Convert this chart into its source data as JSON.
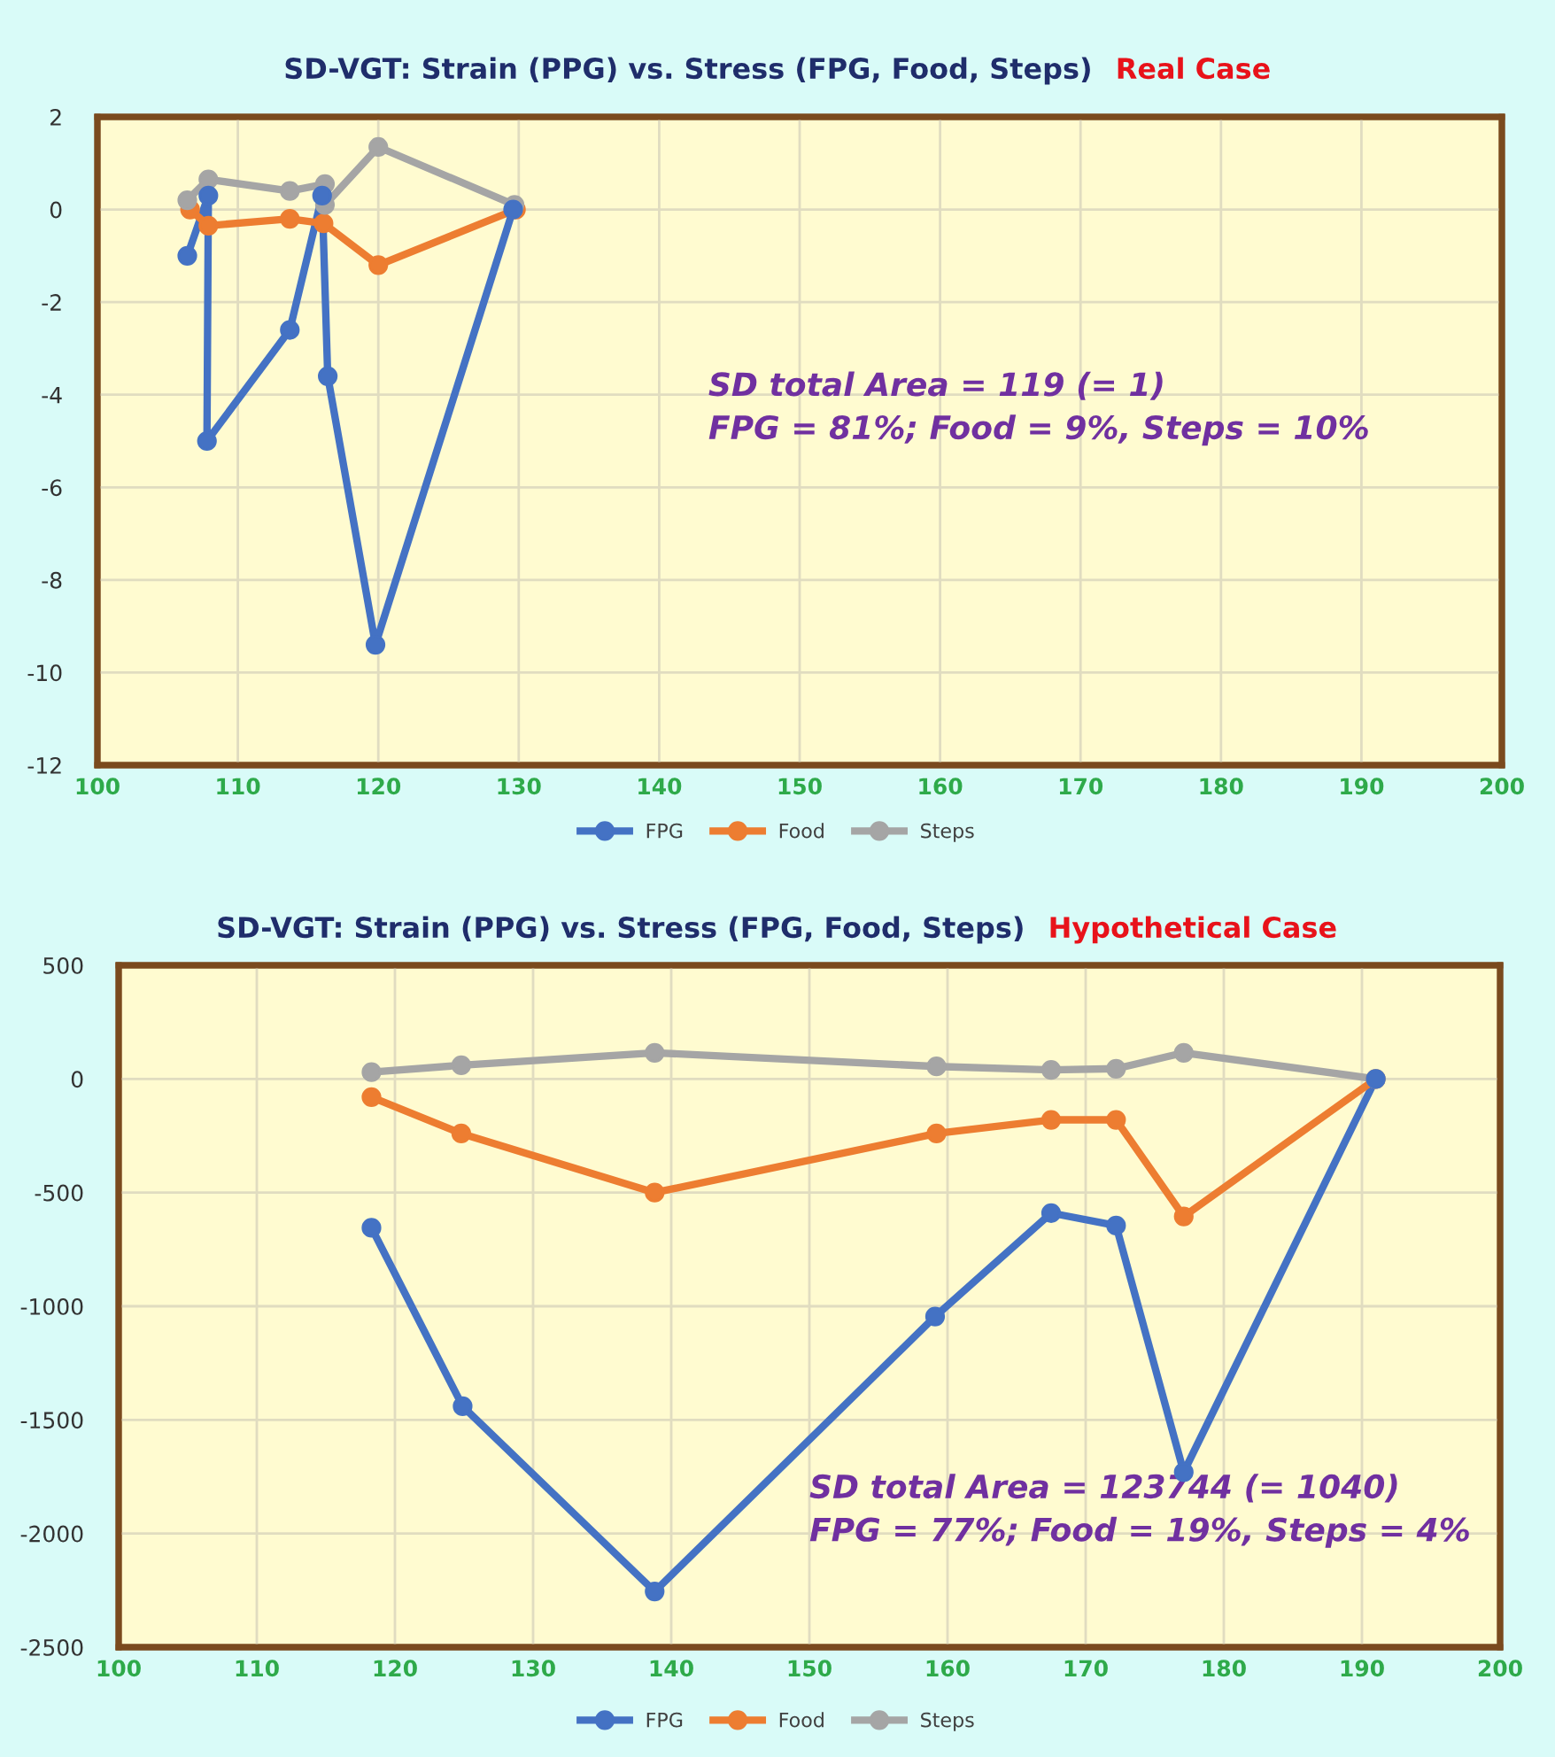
{
  "chart_data": [
    {
      "type": "line",
      "title": "SD-VGT: Strain (PPG) vs. Stress (FPG, Food, Steps)",
      "subtitle": "Real Case",
      "xlim": [
        100,
        200
      ],
      "xticks": [
        100,
        110,
        120,
        130,
        140,
        150,
        160,
        170,
        180,
        190,
        200
      ],
      "ylim": [
        -12,
        2
      ],
      "yticks": [
        -12,
        -10,
        -8,
        -6,
        -4,
        -2,
        0,
        2
      ],
      "grid": true,
      "legend": "bottom",
      "marker": "circle",
      "line_style": "solid",
      "series": [
        {
          "name": "FPG",
          "color": "#4472c4",
          "x": [
            106.4,
            107.9,
            107.8,
            113.7,
            116.0,
            116.4,
            119.8,
            129.6
          ],
          "values": [
            -1.0,
            0.3,
            -5.0,
            -2.6,
            0.3,
            -3.6,
            -9.4,
            0
          ]
        },
        {
          "name": "Food",
          "color": "#ed7d31",
          "x": [
            106.6,
            107.9,
            113.7,
            116.1,
            120.0,
            129.8
          ],
          "values": [
            0,
            -0.35,
            -0.2,
            -0.3,
            -1.2,
            0
          ]
        },
        {
          "name": "Steps",
          "color": "#a5a5a5",
          "x": [
            106.4,
            107.9,
            113.7,
            116.2,
            116.2,
            120.0,
            129.7
          ],
          "values": [
            0.2,
            0.65,
            0.4,
            0.55,
            0.1,
            1.35,
            0.1
          ]
        }
      ],
      "annotations": [
        "SD total Area = 119 (= 1)\nFPG = 81%; Food = 9%, Steps = 10%"
      ]
    },
    {
      "type": "line",
      "title": "SD-VGT: Strain (PPG) vs. Stress (FPG, Food, Steps)",
      "subtitle": "Hypothetical Case",
      "xlim": [
        100,
        200
      ],
      "xticks": [
        100,
        110,
        120,
        130,
        140,
        150,
        160,
        170,
        180,
        190,
        200
      ],
      "ylim": [
        -2500,
        500
      ],
      "yticks": [
        -2500,
        -2000,
        -1500,
        -1000,
        -500,
        0,
        500
      ],
      "grid": true,
      "legend": "bottom",
      "marker": "circle",
      "line_style": "solid",
      "series": [
        {
          "name": "FPG",
          "color": "#4472c4",
          "x": [
            118.3,
            124.9,
            138.8,
            159.1,
            167.5,
            172.2,
            177.1,
            191
          ],
          "values": [
            -655,
            -1440,
            -2255,
            -1045,
            -590,
            -645,
            -1730,
            0
          ]
        },
        {
          "name": "Food",
          "color": "#ed7d31",
          "x": [
            118.3,
            124.8,
            138.8,
            159.2,
            167.5,
            172.2,
            177.1,
            191
          ],
          "values": [
            -80,
            -240,
            -500,
            -240,
            -180,
            -180,
            -605,
            0
          ]
        },
        {
          "name": "Steps",
          "color": "#a5a5a5",
          "x": [
            118.3,
            124.8,
            138.8,
            159.2,
            167.5,
            172.2,
            177.1,
            191
          ],
          "values": [
            30,
            60,
            115,
            55,
            40,
            45,
            115,
            0
          ]
        }
      ],
      "annotations": [
        "SD total Area = 123744 (= 1040)\nFPG = 77%; Food = 19%, Steps = 4%"
      ]
    }
  ]
}
